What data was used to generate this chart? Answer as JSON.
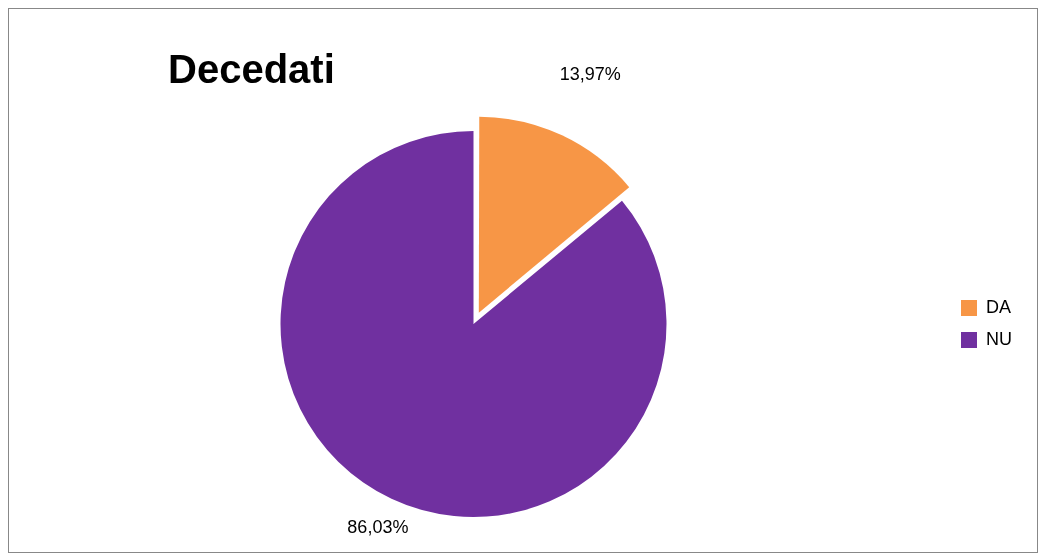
{
  "chart_data": {
    "type": "pie",
    "title": "Decedati",
    "categories": [
      "DA",
      "NU"
    ],
    "values": [
      13.97,
      86.03
    ],
    "colors": [
      "#f79646",
      "#7030a0"
    ],
    "value_labels": [
      "13,97%",
      "86,03%"
    ],
    "legend": "right"
  }
}
